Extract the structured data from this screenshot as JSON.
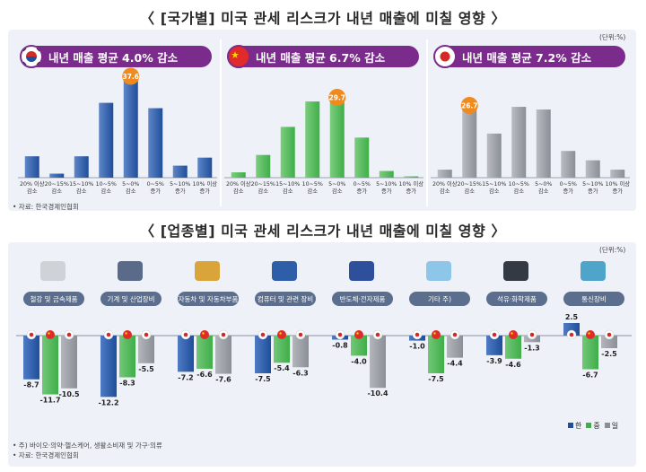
{
  "titles": {
    "country": "〈 [국가별] 미국 관세 리스크가 내년 매출에 미칠 영향 〉",
    "industry": "〈 [업종별] 미국 관세 리스크가 내년 매출에 미칠 영향 〉"
  },
  "unit": "(단위:%)",
  "source": "• 자료: 한국경제인협회",
  "footnote": "• 주) 바이오·의약·헬스케어, 생활소비재 및 가구·의류",
  "source2": "• 자료: 한국경제인협회",
  "colors": {
    "korea": "#1f4e9a",
    "china": "#3fae49",
    "japan": "#8a8f96",
    "highlight": "#f08a1c",
    "pill": "#7a2b8c"
  },
  "chart_data": [
    {
      "type": "bar",
      "categories_lines": [
        [
          "20% 이상",
          "감소"
        ],
        [
          "20~15%",
          "감소"
        ],
        [
          "15~10%",
          "감소"
        ],
        [
          "10~5%",
          "감소"
        ],
        [
          "5~0%",
          "감소"
        ],
        [
          "0~5%",
          "증가"
        ],
        [
          "5~10%",
          "증가"
        ],
        [
          "10% 이상",
          "증가"
        ]
      ],
      "panels": [
        {
          "label": "내년 매출 평균 4.0% 감소",
          "flag": "korea",
          "values": [
            8.0,
            1.5,
            8.0,
            28.0,
            37.6,
            26.0,
            4.5,
            7.5
          ],
          "highlight_index": 4
        },
        {
          "label": "내년 매출 평균 6.7% 감소",
          "flag": "china",
          "values": [
            2.0,
            8.5,
            19.0,
            28.5,
            29.7,
            15.0,
            2.5,
            0.5
          ],
          "highlight_index": 4
        },
        {
          "label": "내년 매출 평균 7.2% 감소",
          "flag": "japan",
          "values": [
            3.0,
            26.7,
            16.5,
            26.5,
            25.5,
            10.0,
            6.5,
            3.0
          ],
          "highlight_index": 1
        }
      ]
    },
    {
      "type": "bar",
      "categories": [
        "철강 및 금속제품",
        "기계 및 산업장비",
        "자동차 및 자동차부품",
        "컴퓨터 및 관련 장비",
        "반도체·전자제품",
        "기타 주)",
        "석유·화학제품",
        "통신장비"
      ],
      "series": [
        {
          "name": "한",
          "values": [
            -8.7,
            -12.2,
            -7.2,
            -7.5,
            -0.8,
            -1.0,
            -3.9,
            2.5
          ]
        },
        {
          "name": "중",
          "values": [
            -11.7,
            -8.3,
            -6.6,
            -5.4,
            -4.0,
            -7.5,
            -4.6,
            -6.7
          ]
        },
        {
          "name": "일",
          "values": [
            -10.5,
            -5.5,
            -7.6,
            -6.3,
            -10.4,
            -4.4,
            -1.3,
            -2.5
          ]
        }
      ],
      "value_labels": [
        [
          "-8.7",
          "-11.7",
          "-10.5"
        ],
        [
          "-12.2",
          "-8.3",
          "-5.5"
        ],
        [
          "-7.2",
          "-6.6",
          "-7.6"
        ],
        [
          "-7.5",
          "-5.4",
          "-6.3"
        ],
        [
          "-0.8",
          "-4.0",
          "-10.4"
        ],
        [
          "-1.0",
          "-7.5",
          "-4.4"
        ],
        [
          "-3.9",
          "-4.6",
          "-1.3"
        ],
        [
          "2.5",
          "-6.7",
          "-2.5"
        ]
      ],
      "legend_position": "bottom-right"
    }
  ]
}
